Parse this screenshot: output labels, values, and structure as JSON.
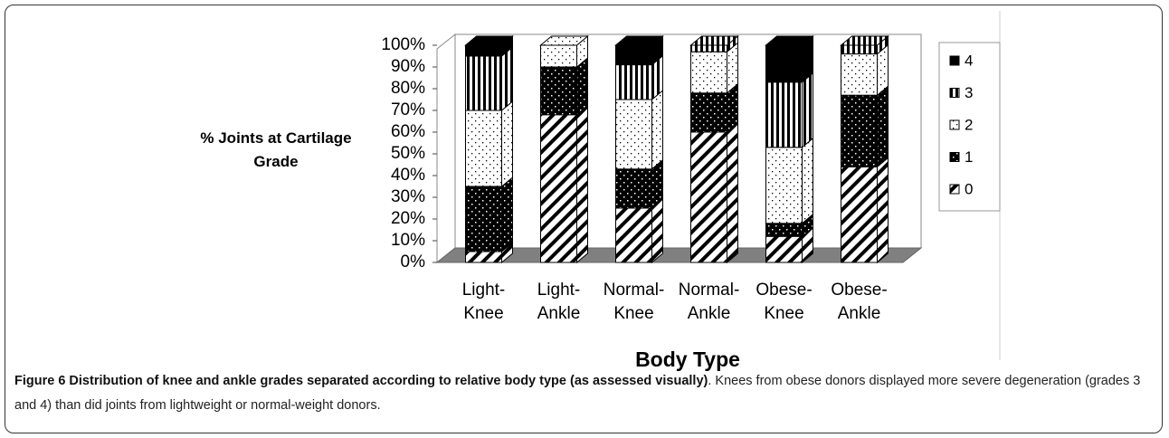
{
  "chart_data": {
    "type": "bar3d-stacked",
    "y_label": "% Joints at Cartilage Grade",
    "x_label": "Body Type",
    "categories": [
      "Light-Knee",
      "Light-Ankle",
      "Normal-Knee",
      "Normal-Ankle",
      "Obese-Knee",
      "Obese-Ankle"
    ],
    "series": [
      {
        "name": "0",
        "pattern": "diagonal",
        "values": [
          5,
          68,
          25,
          60,
          12,
          44
        ]
      },
      {
        "name": "1",
        "pattern": "dots-dark",
        "values": [
          30,
          22,
          18,
          18,
          6,
          33
        ]
      },
      {
        "name": "2",
        "pattern": "dots-light",
        "values": [
          35,
          10,
          32,
          19,
          35,
          19
        ]
      },
      {
        "name": "3",
        "pattern": "vertical",
        "values": [
          25,
          0,
          16,
          3,
          30,
          4
        ]
      },
      {
        "name": "4",
        "pattern": "solid",
        "values": [
          5,
          0,
          9,
          0,
          17,
          0
        ]
      }
    ],
    "ylim": [
      0,
      100
    ],
    "yticks": [
      {
        "value": 0,
        "label": "0%"
      },
      {
        "value": 10,
        "label": "10%"
      },
      {
        "value": 20,
        "label": "20%"
      },
      {
        "value": 30,
        "label": "30%"
      },
      {
        "value": 40,
        "label": "40%"
      },
      {
        "value": 50,
        "label": "50%"
      },
      {
        "value": 60,
        "label": "60%"
      },
      {
        "value": 70,
        "label": "70%"
      },
      {
        "value": 80,
        "label": "80%"
      },
      {
        "value": 90,
        "label": "90%"
      },
      {
        "value": 100,
        "label": "100%"
      }
    ],
    "legend": "right"
  },
  "caption": {
    "label": "Figure 6 Distribution of knee and ankle grades separated according to relative body type (as assessed visually)",
    "text": ". Knees from obese donors displayed more severe degeneration (grades 3 and 4) than did joints from lightweight or normal-weight donors."
  }
}
